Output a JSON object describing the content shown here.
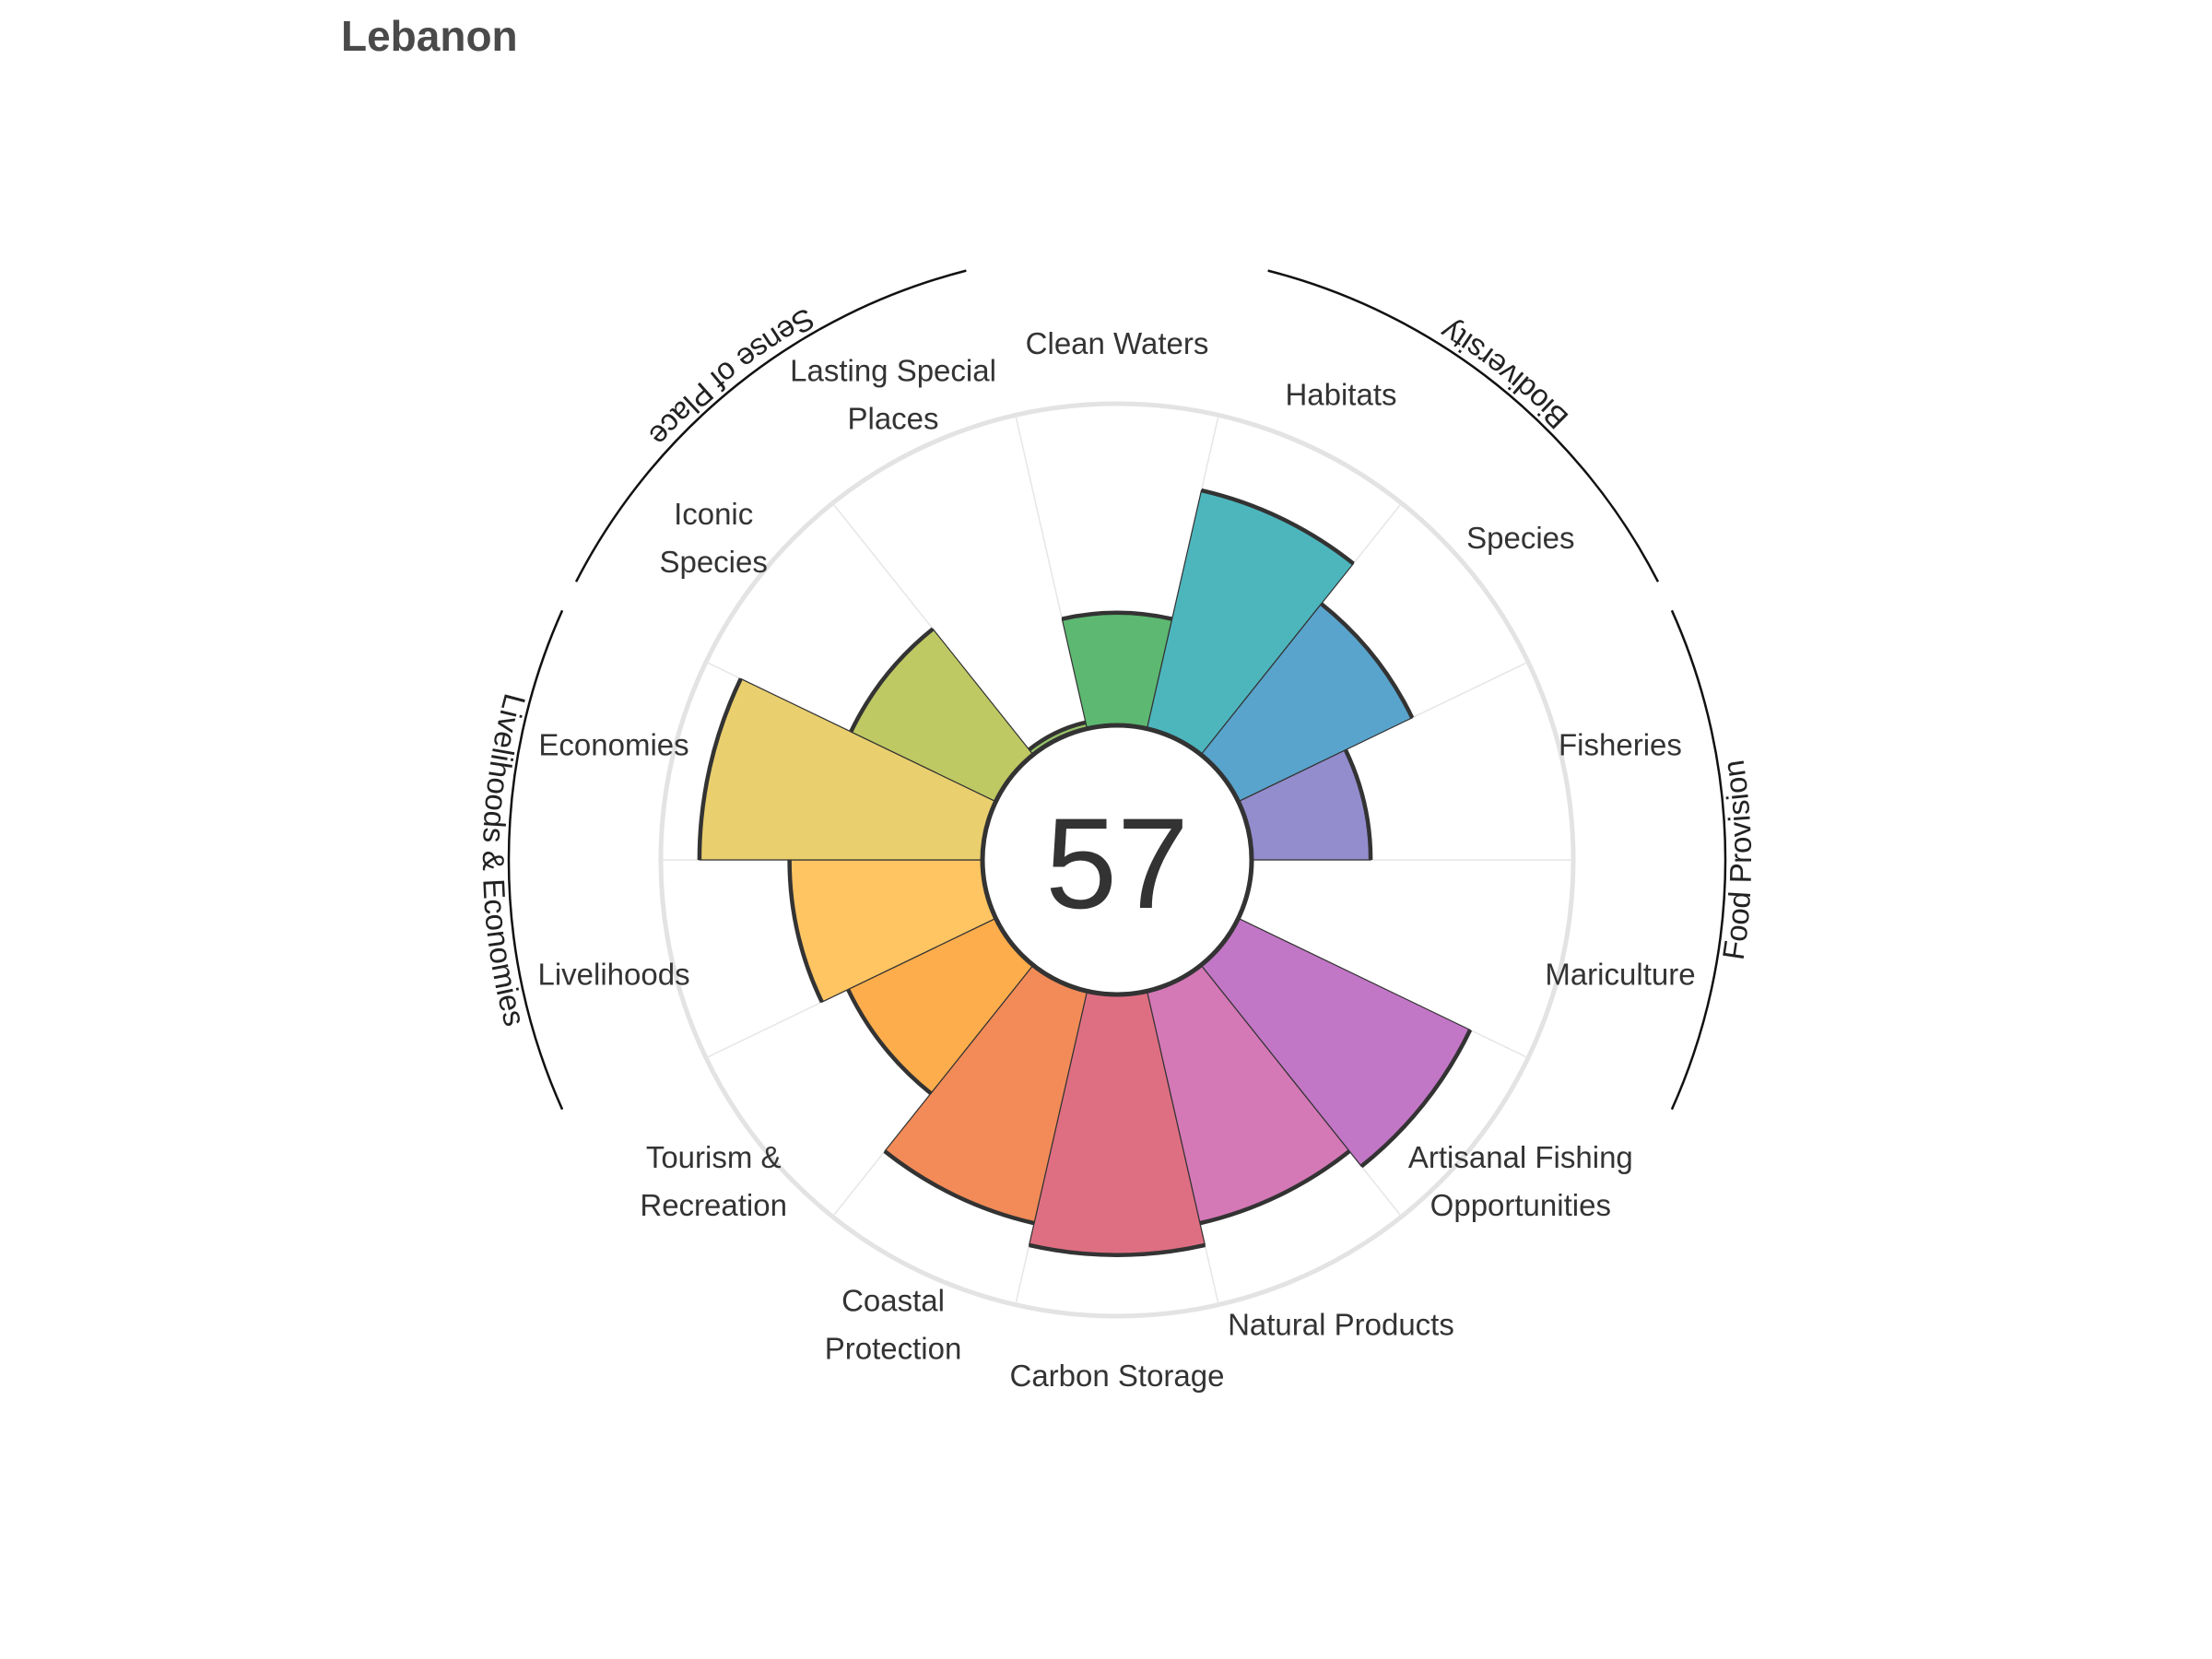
{
  "chart_data": {
    "type": "polar-bar",
    "title": "Lebanon",
    "overall_score": "57",
    "rlim": [
      0,
      100
    ],
    "grid": true,
    "categories": [
      {
        "name": "Fisheries",
        "label": [
          "Fisheries"
        ],
        "value": 37,
        "color": "#938ccd"
      },
      {
        "name": "Mariculture",
        "label": [
          "Mariculture"
        ],
        "value": 0,
        "color": "#9a86c8"
      },
      {
        "name": "Artisanal Fishing Opportunities",
        "label": [
          "Artisanal Fishing",
          "Opportunities"
        ],
        "value": 80,
        "color": "#c276c6"
      },
      {
        "name": "Natural Products",
        "label": [
          "Natural Products"
        ],
        "value": 74,
        "color": "#d478b6"
      },
      {
        "name": "Carbon Storage",
        "label": [
          "Carbon Storage"
        ],
        "value": 81,
        "color": "#de6f82"
      },
      {
        "name": "Coastal Protection",
        "label": [
          "Coastal",
          "Protection"
        ],
        "value": 74,
        "color": "#f28b58"
      },
      {
        "name": "Tourism & Recreation",
        "label": [
          "Tourism &",
          "Recreation"
        ],
        "value": 51,
        "color": "#fdad4b"
      },
      {
        "name": "Livelihoods",
        "label": [
          "Livelihoods"
        ],
        "value": 60,
        "color": "#fec562"
      },
      {
        "name": "Economies",
        "label": [
          "Economies"
        ],
        "value": 88,
        "color": "#e9cf6e"
      },
      {
        "name": "Iconic Species",
        "label": [
          "Iconic",
          "Species"
        ],
        "value": 50,
        "color": "#bfc963"
      },
      {
        "name": "Lasting Special Places",
        "label": [
          "Lasting Special",
          "Places"
        ],
        "value": 2,
        "color": "#98c46a"
      },
      {
        "name": "Clean Waters",
        "label": [
          "Clean Waters"
        ],
        "value": 35,
        "color": "#5db871"
      },
      {
        "name": "Habitats",
        "label": [
          "Habitats"
        ],
        "value": 76,
        "color": "#4db6bd"
      },
      {
        "name": "Species",
        "label": [
          "Species"
        ],
        "value": 60,
        "color": "#59a4cc"
      }
    ],
    "groups": [
      {
        "name": "Food Provision",
        "members": [
          "Fisheries",
          "Mariculture"
        ]
      },
      {
        "name": "Biodiversity",
        "members": [
          "Habitats",
          "Species"
        ]
      },
      {
        "name": "Livelihoods & Economies",
        "members": [
          "Livelihoods",
          "Economies"
        ]
      },
      {
        "name": "Sense of Place",
        "members": [
          "Iconic Species",
          "Lasting Special Places"
        ]
      }
    ]
  }
}
